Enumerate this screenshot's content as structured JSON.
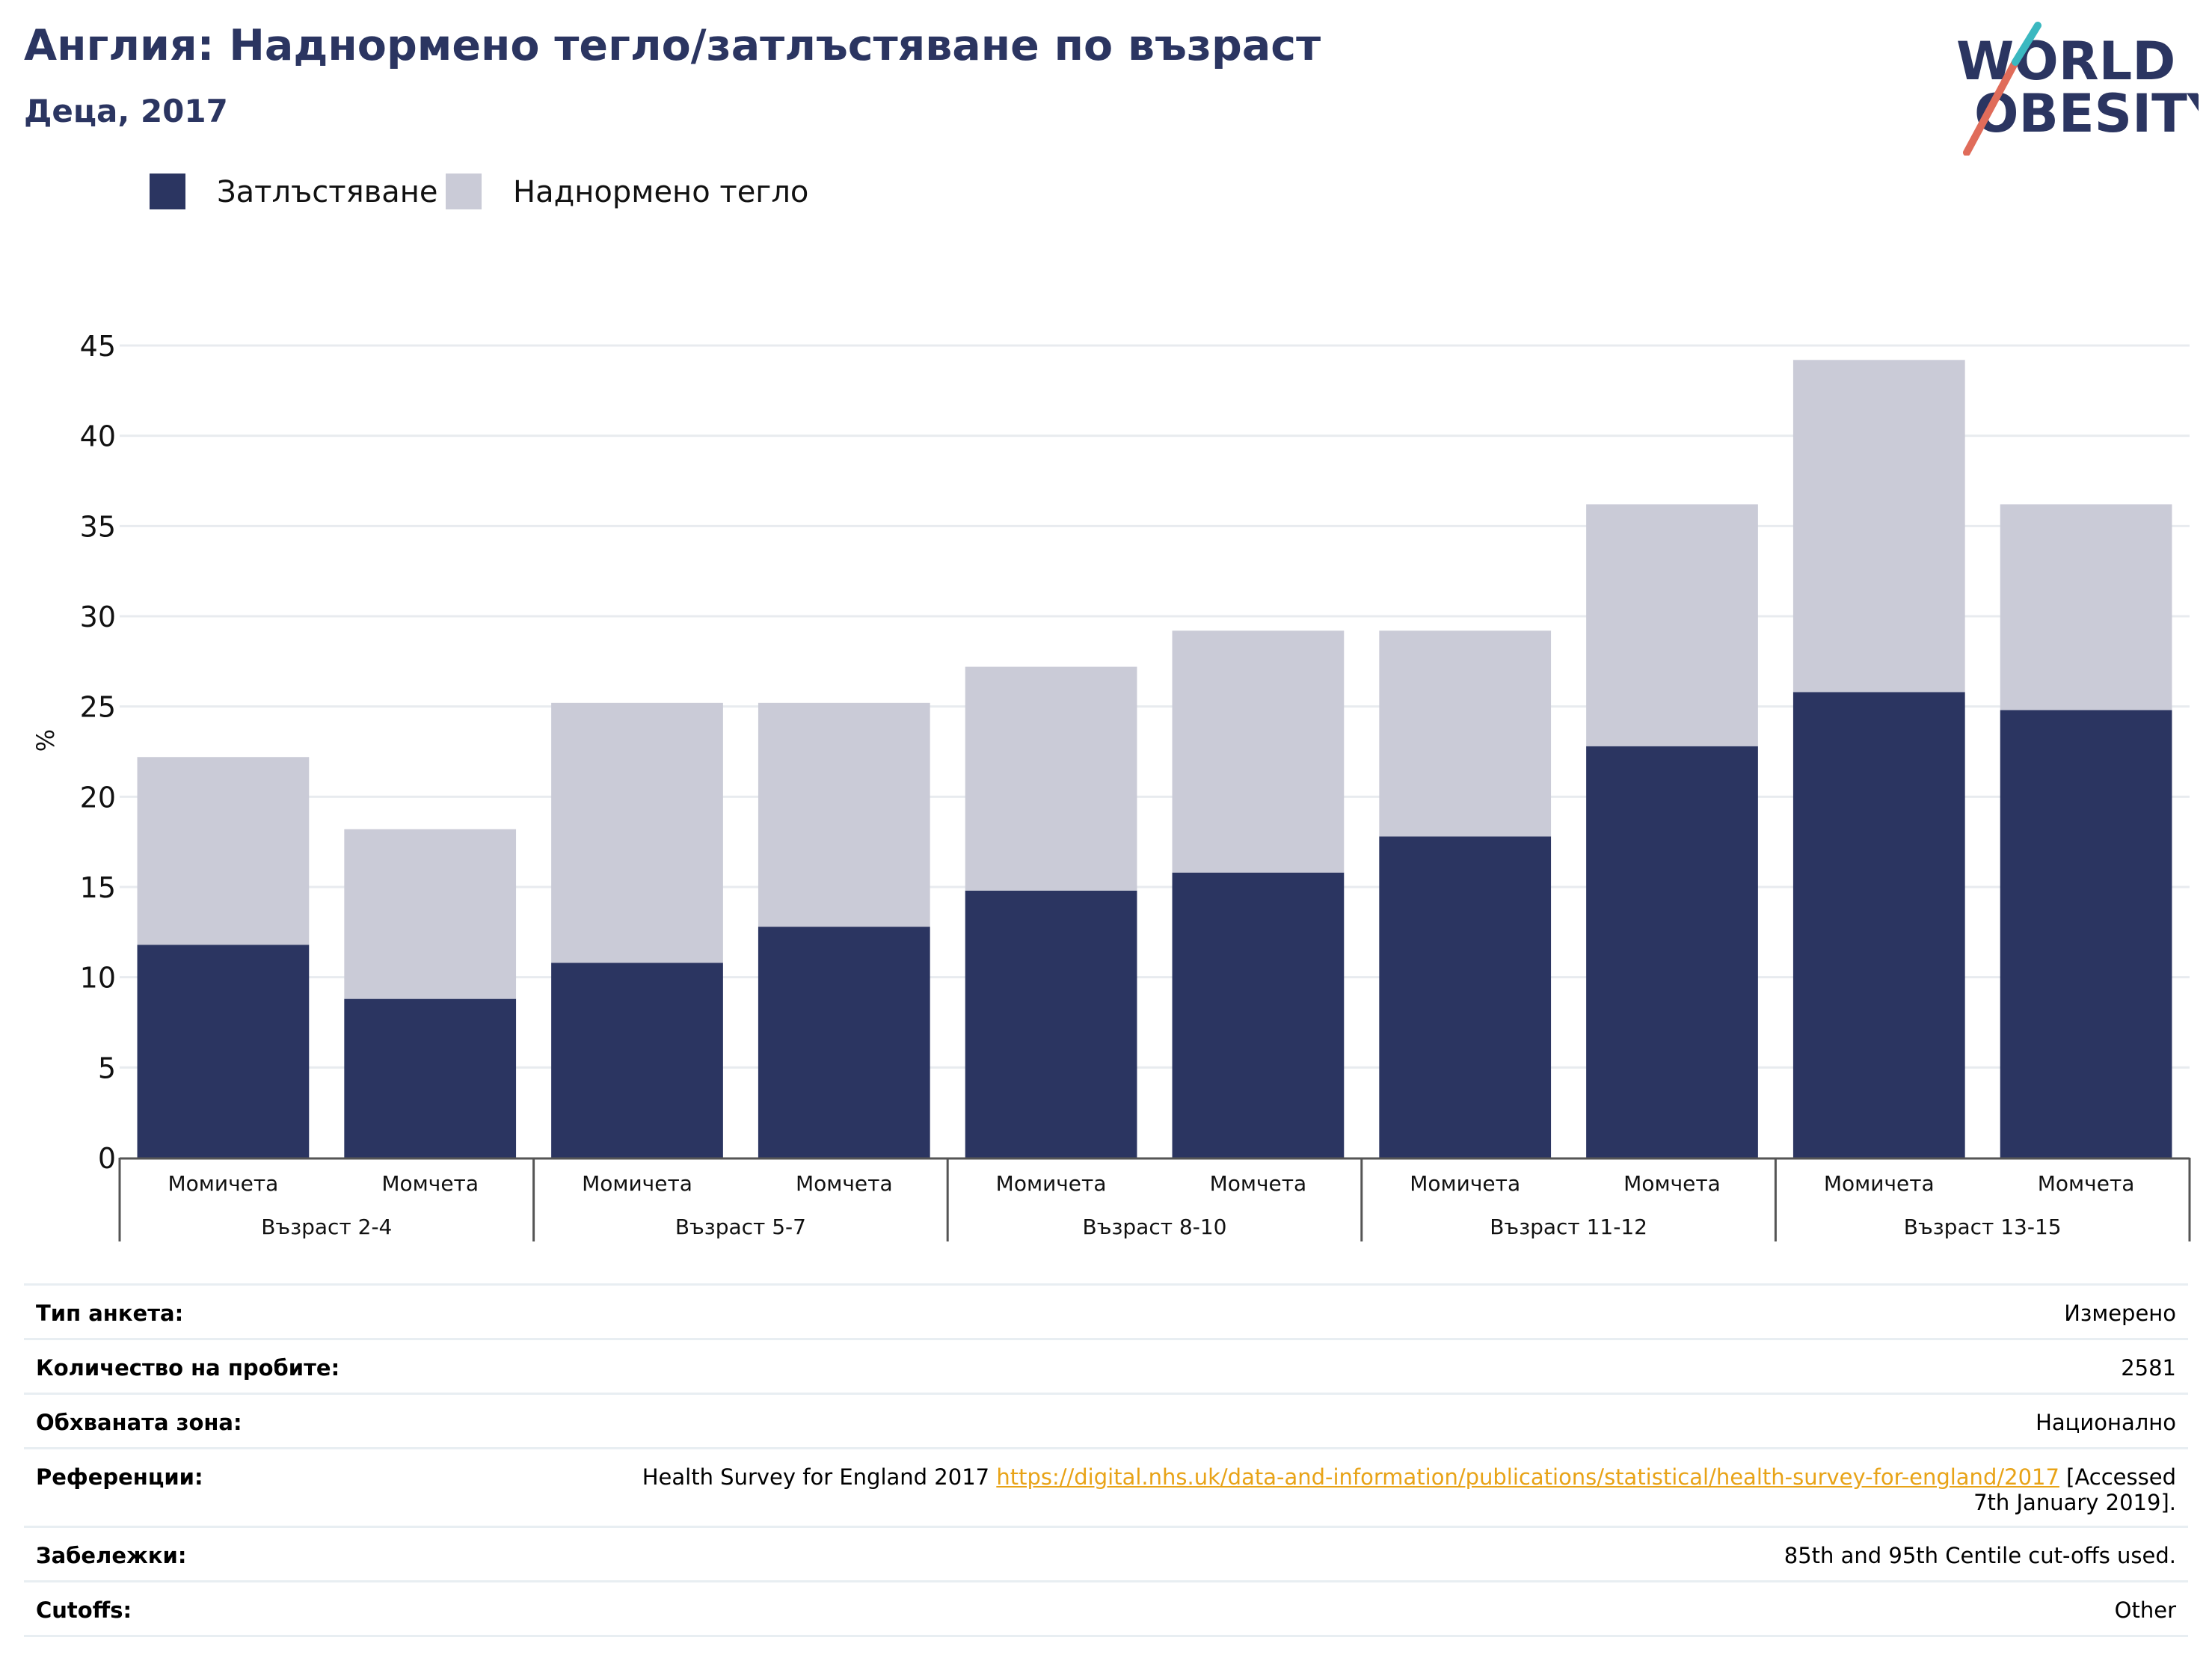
{
  "header": {
    "title": "Англия: Наднормено тегло/затлъстяване по възраст",
    "subtitle": "Деца, 2017"
  },
  "logo": {
    "line1": "WORLD",
    "line2": "OBESITY",
    "colors": {
      "text": "#2b3561",
      "slash_red": "#e06c5a",
      "slash_teal": "#3bb8c0"
    }
  },
  "legend": [
    {
      "label": "Затлъстяване",
      "color": "#2b3561"
    },
    {
      "label": "Наднормено тегло",
      "color": "#cacbd7"
    }
  ],
  "chart_data": {
    "type": "bar",
    "stacked": true,
    "ylabel": "%",
    "ylim": [
      0,
      45
    ],
    "yticks": [
      0,
      5,
      10,
      15,
      20,
      25,
      30,
      35,
      40,
      45
    ],
    "grid": true,
    "legend_position": "top-left",
    "groups": [
      "Възраст 2-4",
      "Възраст 5-7",
      "Възраст 8-10",
      "Възраст 11-12",
      "Възраст 13-15"
    ],
    "categories": [
      "Момичета",
      "Момчета",
      "Момичета",
      "Момчета",
      "Момичета",
      "Момчета",
      "Момичета",
      "Момчета",
      "Момичета",
      "Момчета"
    ],
    "category_group_index": [
      0,
      0,
      1,
      1,
      2,
      2,
      3,
      3,
      4,
      4
    ],
    "series": [
      {
        "name": "Затлъстяване",
        "color": "#2b3561",
        "values": [
          11.8,
          8.8,
          10.8,
          12.8,
          14.8,
          15.8,
          17.8,
          22.8,
          25.8,
          24.8
        ]
      },
      {
        "name": "Наднормено тегло",
        "color": "#cacbd7",
        "values": [
          10.4,
          9.4,
          14.4,
          12.4,
          12.4,
          13.4,
          11.4,
          13.4,
          18.4,
          11.4
        ]
      }
    ]
  },
  "info": {
    "survey_type": {
      "label": "Тип анкета:",
      "value": "Измерено"
    },
    "sample_size": {
      "label": "Количество на пробите:",
      "value": "2581"
    },
    "area": {
      "label": "Обхваната зона:",
      "value": "Национално"
    },
    "references": {
      "label": "Референции:",
      "text_before": "Health Survey for England 2017 ",
      "link": "https://digital.nhs.uk/data-and-information/publications/statistical/health-survey-for-england/2017",
      "text_after": " [Accessed 7th January 2019]."
    },
    "notes": {
      "label": "Забележки:",
      "value": "85th and 95th Centile cut-offs used."
    },
    "cutoffs": {
      "label": "Cutoffs:",
      "value": "Other"
    }
  }
}
